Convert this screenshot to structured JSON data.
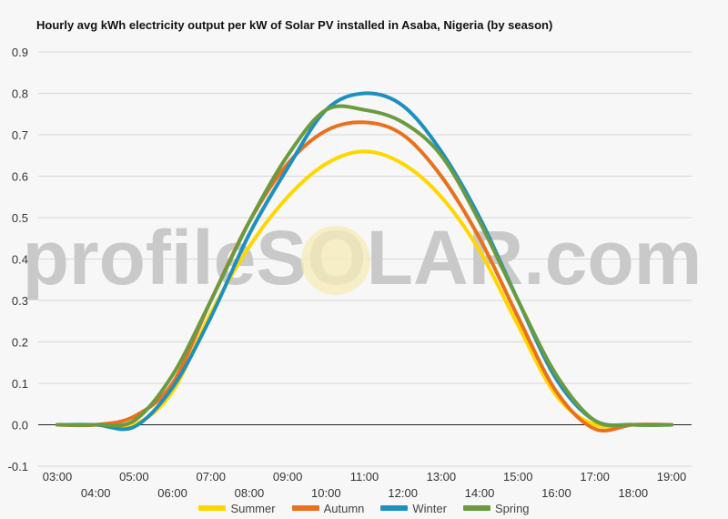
{
  "chart_data": {
    "type": "line",
    "title": "Hourly avg kWh electricity output per kW of Solar PV installed in Asaba, Nigeria (by season)",
    "watermark": "profileSOLAR.com",
    "xlabel": "",
    "ylabel": "",
    "x": [
      "03:00",
      "04:00",
      "05:00",
      "06:00",
      "07:00",
      "08:00",
      "09:00",
      "10:00",
      "11:00",
      "12:00",
      "13:00",
      "14:00",
      "15:00",
      "16:00",
      "17:00",
      "18:00",
      "19:00"
    ],
    "ylim": [
      -0.1,
      0.9
    ],
    "yticks": [
      "-0.1",
      "0.0",
      "0.1",
      "0.2",
      "0.3",
      "0.4",
      "0.5",
      "0.6",
      "0.7",
      "0.8",
      "0.9"
    ],
    "grid": true,
    "legend_position": "bottom",
    "series": [
      {
        "name": "Summer",
        "color": "#ffd700",
        "values": [
          0,
          0,
          0,
          0.08,
          0.27,
          0.43,
          0.55,
          0.63,
          0.66,
          0.63,
          0.55,
          0.42,
          0.24,
          0.07,
          0,
          0,
          0
        ]
      },
      {
        "name": "Autumn",
        "color": "#e8711e",
        "values": [
          0,
          0,
          0.02,
          0.1,
          0.3,
          0.49,
          0.63,
          0.71,
          0.73,
          0.7,
          0.6,
          0.45,
          0.26,
          0.08,
          -0.01,
          0,
          0
        ]
      },
      {
        "name": "Winter",
        "color": "#1e90bf",
        "values": [
          0,
          0,
          -0.005,
          0.09,
          0.26,
          0.46,
          0.62,
          0.76,
          0.8,
          0.77,
          0.66,
          0.5,
          0.3,
          0.11,
          0.01,
          0,
          0
        ]
      },
      {
        "name": "Spring",
        "color": "#6b9a3f",
        "values": [
          0,
          0,
          0.01,
          0.12,
          0.3,
          0.49,
          0.65,
          0.76,
          0.76,
          0.73,
          0.65,
          0.49,
          0.3,
          0.12,
          0.01,
          0,
          0
        ]
      }
    ]
  }
}
